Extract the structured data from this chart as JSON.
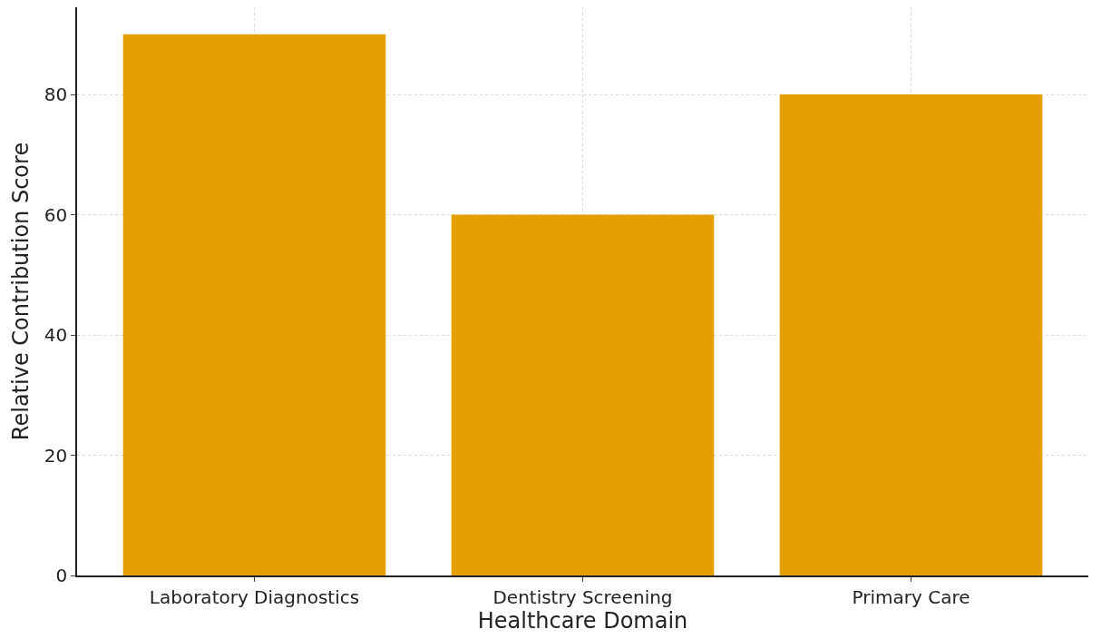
{
  "chart_data": {
    "type": "bar",
    "xlabel": "Healthcare Domain",
    "ylabel": "Relative Contribution Score",
    "categories": [
      "Laboratory Diagnostics",
      "Dentistry Screening",
      "Primary Care"
    ],
    "values": [
      90,
      60,
      80
    ],
    "color": "#e69f00",
    "ylim": [
      0,
      94.5
    ],
    "yticks": [
      0,
      20,
      40,
      60,
      80
    ],
    "grid": true
  }
}
